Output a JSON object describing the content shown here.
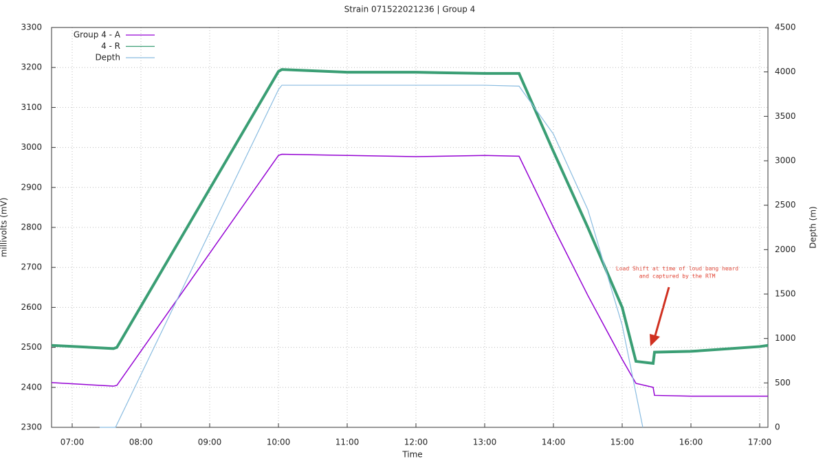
{
  "chart_data": {
    "type": "line",
    "title": "Strain 071522021236 | Group 4",
    "x_label": "Time",
    "y_label": "millivolts (mV)",
    "y2_label": "Depth (m)",
    "annotation": [
      "Load Shift at time of loud bang heard",
      "and captured by the RTM"
    ],
    "annotation_color": "#e04030",
    "xlim": [
      6.7,
      17.12
    ],
    "xticks": [
      {
        "value": 7,
        "label": "07:00"
      },
      {
        "value": 8,
        "label": "08:00"
      },
      {
        "value": 9,
        "label": "09:00"
      },
      {
        "value": 10,
        "label": "10:00"
      },
      {
        "value": 11,
        "label": "11:00"
      },
      {
        "value": 12,
        "label": "12:00"
      },
      {
        "value": 13,
        "label": "13:00"
      },
      {
        "value": 14,
        "label": "14:00"
      },
      {
        "value": 15,
        "label": "15:00"
      },
      {
        "value": 16,
        "label": "16:00"
      },
      {
        "value": 17,
        "label": "17:00"
      }
    ],
    "ylim": [
      2300,
      3300
    ],
    "yticks": [
      2300,
      2400,
      2500,
      2600,
      2700,
      2800,
      2900,
      3000,
      3100,
      3200,
      3300
    ],
    "y2lim": [
      0,
      4500
    ],
    "y2ticks": [
      0,
      500,
      1000,
      1500,
      2000,
      2500,
      3000,
      3500,
      4000,
      4500
    ],
    "grid": true,
    "legend": "top-left",
    "series": [
      {
        "name": "Group 4 - A",
        "color": "#9400d3",
        "width": 1.5,
        "x": [
          6.7,
          7.6,
          7.65,
          10.0,
          10.05,
          11,
          12,
          13,
          13.5,
          14,
          14.5,
          15,
          15.2,
          15.45,
          15.47,
          16,
          17,
          17.12
        ],
        "values": [
          2412,
          2403,
          2405,
          2980,
          2983,
          2980,
          2977,
          2980,
          2978,
          2800,
          2630,
          2470,
          2410,
          2400,
          2380,
          2378,
          2378,
          2378
        ]
      },
      {
        "name": "4 - R",
        "color": "#3a9e74",
        "width": 4,
        "x": [
          6.7,
          7.6,
          7.65,
          10.0,
          10.05,
          11,
          12,
          13,
          13.5,
          14,
          14.5,
          15,
          15.2,
          15.45,
          15.47,
          16,
          17,
          17.12
        ],
        "values": [
          2505,
          2497,
          2500,
          3190,
          3195,
          3188,
          3188,
          3185,
          3185,
          2990,
          2800,
          2600,
          2465,
          2460,
          2488,
          2490,
          2502,
          2505
        ]
      },
      {
        "name": "Depth",
        "color": "#88bbe0",
        "width": 1.2,
        "axis": "y2",
        "x": [
          7.4,
          7.63,
          10.0,
          10.05,
          11,
          12,
          13,
          13.5,
          14,
          14.5,
          15,
          15.3
        ],
        "values": [
          0,
          0,
          3800,
          3850,
          3850,
          3850,
          3850,
          3840,
          3300,
          2450,
          1150,
          0
        ]
      }
    ]
  }
}
